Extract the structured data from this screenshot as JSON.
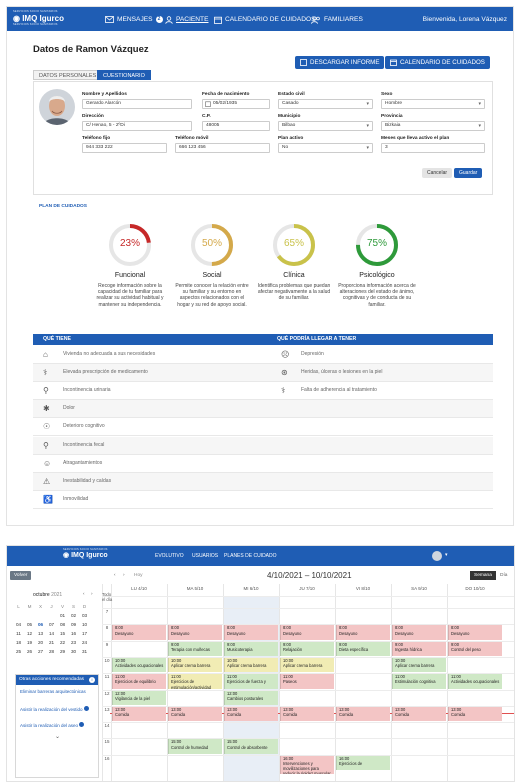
{
  "app": {
    "logo_small": "SERVICIOS SOCIO SANITARIOS",
    "logo_big": "IMQ Igurco",
    "logo_sub": "SERVICIOS SOCIO SANITARIOS"
  },
  "nav": {
    "mensajes": "MENSAJES",
    "mensajes_count": "2",
    "paciente": "PACIENTE",
    "calendario": "CALENDARIO DE CUIDADOS",
    "familiares": "FAMILIARES",
    "user": "Bienvenida, Lorena Vázquez"
  },
  "patient": {
    "title": "Datos de Ramon Vázquez",
    "tabs": [
      "DATOS PERSONALES",
      "CUESTIONARIO"
    ],
    "btn_informe": "DESCARGAR INFORME",
    "btn_calendario": "CALENDARIO DE CUIDADOS",
    "labels": {
      "nombre": "Nombre y Apellidos",
      "nacimiento": "Fecha de nacimiento",
      "civil": "Estado civil",
      "sexo": "Sexo",
      "direccion": "Dirección",
      "cp": "C.P.",
      "municipio": "Municipio",
      "provincia": "Provincia",
      "fijo": "Teléfono fijo",
      "movil": "Teléfono móvil",
      "plan": "Plan activo",
      "meses": "Meses que lleva activo el plan"
    },
    "values": {
      "nombre": "Gerardo Alarcón",
      "nacimiento": "05/02/1935",
      "civil": "Casado",
      "sexo": "Hombre",
      "direccion": "C/ Henao, 5 - 2ºDi",
      "cp": "48005",
      "municipio": "Bilbao",
      "provincia": "Bizkaia",
      "fijo": "944 333 222",
      "movil": "666 123 456",
      "plan": "No",
      "meses": "3"
    },
    "cancel": "Cancelar",
    "save": "Guardar"
  },
  "plan": {
    "header": "PLAN DE CUIDADOS",
    "rings": [
      {
        "pct": "23%",
        "value": 23,
        "color": "#c62828",
        "title": "Funcional",
        "desc": "Recoge información sobre la capacidad de tu familiar para realizar su actividad habitual y mantener su independencia."
      },
      {
        "pct": "50%",
        "value": 50,
        "color": "#d4a94a",
        "title": "Social",
        "desc": "Permite conocer la relación entre su familiar y su entorno en aspectos relacionados con el hogar y su red de apoyo social."
      },
      {
        "pct": "65%",
        "value": 65,
        "color": "#c9c24a",
        "title": "Clínica",
        "desc": "Identifica problemas que puedan afectar negativamente a la salud de su familiar."
      },
      {
        "pct": "75%",
        "value": 75,
        "color": "#2e9a3a",
        "title": "Psicológico",
        "desc": "Proporciona información acerca de alteraciones del estado de ánimo, cognitivas y de conducta de su familiar."
      }
    ]
  },
  "conditions": {
    "left_header": "QUÉ TIENE",
    "right_header": "QUÉ PODRÍA LLEGAR A TENER",
    "left": [
      "Vivienda no adecuada a sus necesidades",
      "Elevada prescripción de medicamento",
      "Incontinencia urinaria",
      "Dolor",
      "Deterioro cognitivo",
      "Incontinencia fecal",
      "Atragantamientos",
      "Inestabilidad y caídas",
      "Inmovilidad"
    ],
    "right": [
      "Depresión",
      "Heridas, úlceras o lesiones en la piel",
      "Falta de adherencia al tratamiento"
    ]
  },
  "calendar": {
    "nav": [
      "EVOLUTIVO",
      "USUARIOS",
      "PLANES DE CUIDADO"
    ],
    "volver": "Volver",
    "hoy": "Hoy",
    "range": "4/10/2021 – 10/10/2021",
    "view_semana": "Semana",
    "view_dia": "Día",
    "allday": "Todo el día",
    "days": [
      "LU 4/10",
      "MA 5/10",
      "MI 6/10",
      "JU 7/10",
      "VI 8/10",
      "SA 9/10",
      "DO 10/10"
    ],
    "hours": [
      "7",
      "8",
      "9",
      "10",
      "11",
      "12",
      "13",
      "14",
      "15",
      "16"
    ],
    "mini": {
      "month": "octubre",
      "year": "2021",
      "weekdays": [
        "L",
        "M",
        "X",
        "J",
        "V",
        "S",
        "D"
      ],
      "rows": [
        [
          "",
          "",
          "",
          "",
          "01",
          "02",
          "03"
        ],
        [
          "04",
          "05",
          "06",
          "07",
          "08",
          "09",
          "10"
        ],
        [
          "11",
          "12",
          "13",
          "14",
          "15",
          "16",
          "17"
        ],
        [
          "18",
          "19",
          "20",
          "21",
          "22",
          "23",
          "24"
        ],
        [
          "25",
          "26",
          "27",
          "28",
          "29",
          "30",
          "31"
        ]
      ]
    },
    "actions_title": "Otras acciones recomendadas",
    "actions": [
      "Eliminar barreras arquitectónicas",
      "Asistir la realización del vestido",
      "Asistir la realización del aseo"
    ],
    "events": {
      "e1": "8:00",
      "e1t": "Desayuno",
      "e2": "10:00",
      "e2t": "Actividades ocupacionales",
      "e3": "11:00",
      "e3t": "Ejercicios de equilibrio",
      "e4": "12:00",
      "e4t": "Vigilancia de la piel",
      "e5": "13:00",
      "e5t": "Comida",
      "m1": "8:00",
      "m1t": "Desayuno",
      "m2": "9:00",
      "m2t": "Terapia con muñecas",
      "m3": "10:00",
      "m3t": "Aplicar crema barrera",
      "m4": "11:00",
      "m4t": "Ejercicios de estimulación/actividad",
      "m5": "13:00",
      "m5t": "Comida",
      "m6": "15:00",
      "m6t": "Control de humedad",
      "x1": "8:00",
      "x1t": "Desayuno",
      "x2": "9:00",
      "x2t": "Musicoterapia",
      "x3": "10:00",
      "x3t": "Aplicar crema barrera",
      "x4": "11:00",
      "x4t": "Ejercicios de fuerza y",
      "x5": "12:00",
      "x5t": "Cambios posturales",
      "x6": "13:00",
      "x6t": "Comida",
      "x7": "15:00",
      "x7t": "Control de absorbente",
      "j1": "8:00",
      "j1t": "Desayuno",
      "j2": "9:00",
      "j2t": "Relajación",
      "j3": "10:00",
      "j3t": "Aplicar crema barrera",
      "j4": "11:00",
      "j4t": "Paseos",
      "j5": "13:00",
      "j5t": "Comida",
      "j6": "16:00",
      "j6t": "Intervenciones y movilizaciones para reducir la rigidez muscular",
      "v1": "8:00",
      "v1t": "Desayuno",
      "v2": "9:00",
      "v2t": "Dieta específica",
      "v3": "13:00",
      "v3t": "Comida",
      "v4": "16:00",
      "v4t": "Ejercicios de",
      "s1": "8:00",
      "s1t": "Desayuno",
      "s2": "9:00",
      "s2t": "Ingesta hídrica",
      "s3": "10:00",
      "s3t": "Aplicar crema barrera",
      "s4": "11:00",
      "s4t": "Estimulación cognitiva",
      "s5": "13:00",
      "s5t": "Comida",
      "d1": "8:00",
      "d1t": "Desayuno",
      "d2": "9:00",
      "d2t": "Control del peso",
      "d3": "11:00",
      "d3t": "Actividades ocupacionales",
      "d4": "13:00",
      "d4t": "Comida"
    }
  }
}
